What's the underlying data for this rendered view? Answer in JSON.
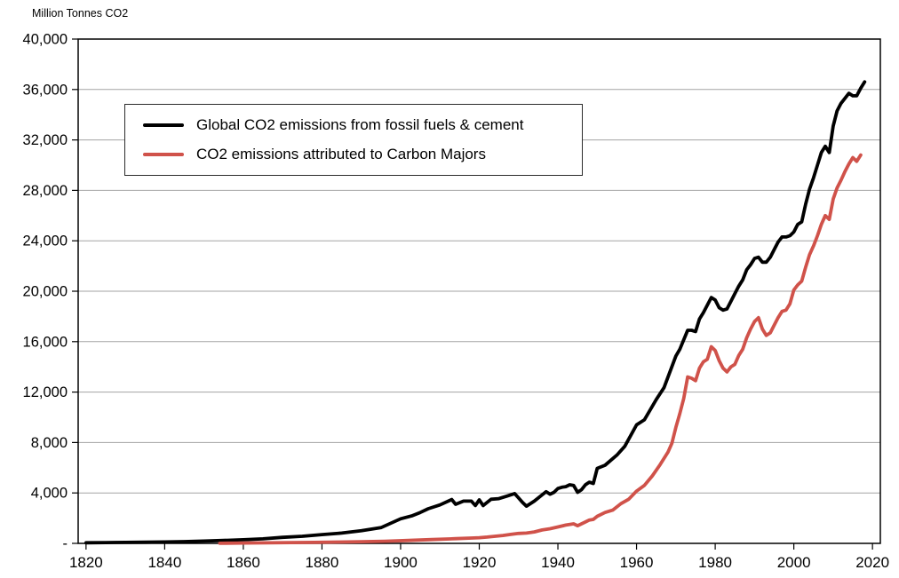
{
  "page": {
    "background": "#ffffff"
  },
  "chart_data": {
    "type": "line",
    "title": "Million Tonnes CO2",
    "xlabel": "",
    "ylabel": "Million Tonnes CO2",
    "grid": "horizontal-gridlines",
    "gridline_color": "#a3a3a3",
    "plot_border_color": "#000000",
    "legend_position": "upper-left-inside",
    "x_axis": {
      "min": 1818,
      "max": 2022,
      "ticks": [
        1820,
        1840,
        1860,
        1880,
        1900,
        1920,
        1940,
        1960,
        1980,
        2000,
        2020
      ]
    },
    "y_axis": {
      "min": 0,
      "max": 40000,
      "tick_interval": 4000,
      "ticks": [
        0,
        4000,
        8000,
        12000,
        16000,
        20000,
        24000,
        28000,
        32000,
        36000,
        40000
      ],
      "tick_labels": [
        "-",
        "4,000",
        "8,000",
        "12,000",
        "16,000",
        "20,000",
        "24,000",
        "28,000",
        "32,000",
        "36,000",
        "40,000"
      ]
    },
    "series": [
      {
        "name": "Global CO2 emissions from fossil fuels & cement",
        "color": "#000000",
        "line_width": 3.8,
        "x": [
          1820,
          1825,
          1830,
          1835,
          1840,
          1845,
          1850,
          1855,
          1860,
          1865,
          1870,
          1875,
          1880,
          1885,
          1890,
          1895,
          1900,
          1903,
          1905,
          1907,
          1910,
          1913,
          1914,
          1916,
          1918,
          1919,
          1920,
          1921,
          1923,
          1925,
          1927,
          1929,
          1930,
          1931,
          1932,
          1934,
          1936,
          1937,
          1938,
          1939,
          1940,
          1941,
          1942,
          1943,
          1944,
          1945,
          1946,
          1947,
          1948,
          1949,
          1950,
          1952,
          1955,
          1957,
          1960,
          1962,
          1965,
          1967,
          1970,
          1971,
          1973,
          1974,
          1975,
          1976,
          1977,
          1979,
          1980,
          1981,
          1982,
          1983,
          1984,
          1985,
          1986,
          1987,
          1988,
          1989,
          1990,
          1991,
          1992,
          1993,
          1994,
          1995,
          1996,
          1997,
          1998,
          1999,
          2000,
          2001,
          2002,
          2003,
          2004,
          2005,
          2006,
          2007,
          2008,
          2009,
          2010,
          2011,
          2012,
          2013,
          2014,
          2015,
          2016,
          2017,
          2018
        ],
        "y": [
          50,
          60,
          80,
          90,
          110,
          140,
          180,
          230,
          290,
          360,
          480,
          560,
          700,
          820,
          1000,
          1250,
          1950,
          2200,
          2450,
          2750,
          3050,
          3480,
          3100,
          3350,
          3350,
          3000,
          3450,
          3000,
          3500,
          3550,
          3750,
          3950,
          3600,
          3250,
          2950,
          3350,
          3850,
          4100,
          3900,
          4050,
          4350,
          4450,
          4500,
          4650,
          4600,
          4050,
          4250,
          4650,
          4850,
          4750,
          5950,
          6200,
          7000,
          7700,
          9400,
          9800,
          11400,
          12350,
          14850,
          15400,
          16900,
          16900,
          16800,
          17800,
          18300,
          19500,
          19300,
          18700,
          18500,
          18600,
          19200,
          19800,
          20400,
          20900,
          21700,
          22100,
          22600,
          22700,
          22300,
          22300,
          22700,
          23300,
          23900,
          24300,
          24300,
          24400,
          24700,
          25300,
          25500,
          26900,
          28100,
          29000,
          30000,
          31000,
          31500,
          31000,
          33100,
          34300,
          34900,
          35300,
          35700,
          35500,
          35500,
          36100,
          36600
        ]
      },
      {
        "name": "CO2 emissions attributed to Carbon Majors",
        "color": "#d0524a",
        "line_width": 3.8,
        "x": [
          1854,
          1860,
          1866,
          1872,
          1878,
          1884,
          1890,
          1896,
          1902,
          1908,
          1914,
          1918,
          1920,
          1922,
          1924,
          1926,
          1928,
          1930,
          1932,
          1934,
          1936,
          1938,
          1940,
          1942,
          1944,
          1945,
          1946,
          1947,
          1948,
          1949,
          1950,
          1952,
          1954,
          1956,
          1958,
          1960,
          1962,
          1964,
          1966,
          1968,
          1969,
          1970,
          1971,
          1972,
          1973,
          1974,
          1975,
          1976,
          1977,
          1978,
          1979,
          1980,
          1981,
          1982,
          1983,
          1984,
          1985,
          1986,
          1987,
          1988,
          1989,
          1990,
          1991,
          1992,
          1993,
          1994,
          1995,
          1996,
          1997,
          1998,
          1999,
          2000,
          2001,
          2002,
          2003,
          2004,
          2005,
          2006,
          2007,
          2008,
          2009,
          2010,
          2011,
          2012,
          2013,
          2014,
          2015,
          2016,
          2017
        ],
        "y": [
          10,
          25,
          40,
          60,
          80,
          105,
          135,
          170,
          230,
          300,
          370,
          420,
          450,
          500,
          560,
          630,
          710,
          790,
          820,
          910,
          1060,
          1160,
          1300,
          1450,
          1550,
          1400,
          1550,
          1700,
          1850,
          1900,
          2150,
          2450,
          2650,
          3150,
          3500,
          4150,
          4600,
          5350,
          6250,
          7250,
          7950,
          9200,
          10300,
          11500,
          13200,
          13100,
          12900,
          13900,
          14400,
          14600,
          15600,
          15300,
          14500,
          13900,
          13600,
          14000,
          14200,
          14900,
          15400,
          16300,
          17000,
          17600,
          17900,
          17000,
          16500,
          16700,
          17300,
          17900,
          18400,
          18500,
          19000,
          20100,
          20500,
          20800,
          21900,
          22900,
          23600,
          24400,
          25300,
          26000,
          25700,
          27300,
          28200,
          28800,
          29500,
          30100,
          30600,
          30300,
          30800
        ]
      }
    ]
  }
}
